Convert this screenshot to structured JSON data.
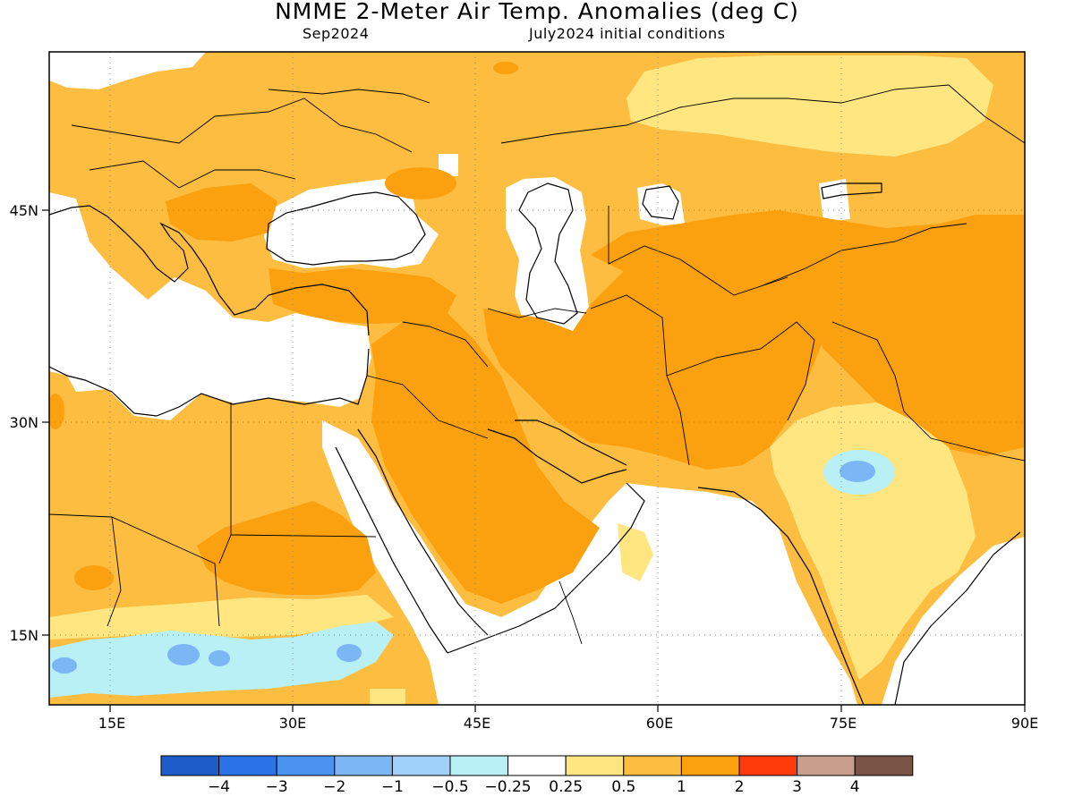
{
  "title": "NMME 2-Meter Air Temp. Anomalies (deg C)",
  "subtitle_left": "Sep2024",
  "subtitle_right": "July2024 initial conditions",
  "x_ticks": [
    "15E",
    "30E",
    "45E",
    "60E",
    "75E",
    "90E"
  ],
  "y_ticks": [
    "45N",
    "30N",
    "15N"
  ],
  "colorbar": {
    "colors": [
      "#1e5cc8",
      "#2b72e6",
      "#4a93f0",
      "#7cb6f5",
      "#9fd0f8",
      "#b8f0f5",
      "#ffffff",
      "#ffe680",
      "#fdbd40",
      "#fba00f",
      "#ff3a0a",
      "#c89e8c",
      "#7a5446"
    ],
    "labels": [
      "−4",
      "−3",
      "−2",
      "−1",
      "−0.5",
      "−0.25",
      "0.25",
      "0.5",
      "1",
      "2",
      "3",
      "4"
    ]
  },
  "map_extent": {
    "lon": [
      10,
      90
    ],
    "lat": [
      10,
      54
    ]
  }
}
